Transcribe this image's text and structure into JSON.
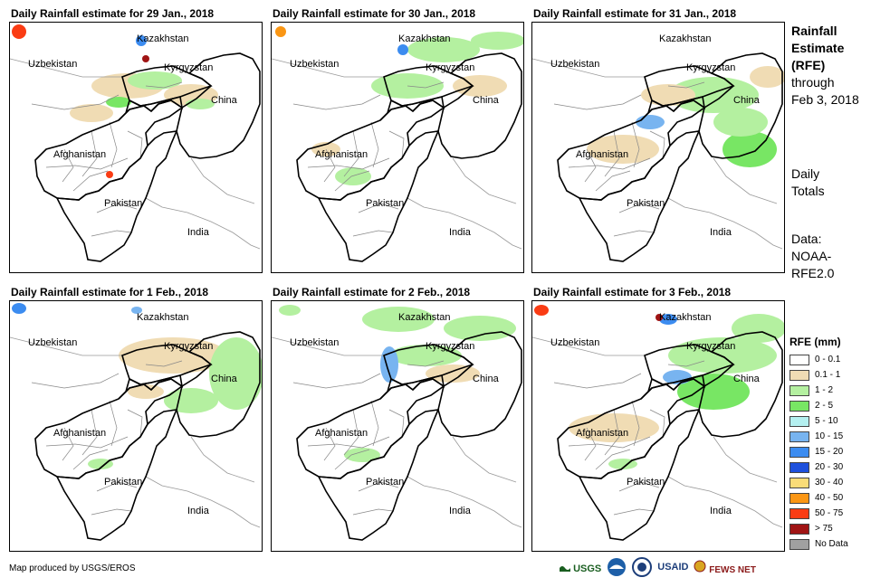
{
  "panels": [
    {
      "title": "Daily Rainfall estimate for 29 Jan., 2018"
    },
    {
      "title": "Daily Rainfall estimate for 30 Jan., 2018"
    },
    {
      "title": "Daily Rainfall estimate for 31 Jan., 2018"
    },
    {
      "title": "Daily Rainfall estimate for 1 Feb., 2018"
    },
    {
      "title": "Daily Rainfall estimate for 2 Feb., 2018"
    },
    {
      "title": "Daily Rainfall estimate for 3 Feb., 2018"
    }
  ],
  "map_labels": {
    "kazakhstan": "Kazakhstan",
    "uzbekistan": "Uzbekistan",
    "kyrgyzstan": "Kyrgyzstan",
    "china": "China",
    "afghanistan": "Afghanistan",
    "pakistan": "Pakistan",
    "india": "India"
  },
  "side": {
    "title_lines": [
      "Rainfall",
      "Estimate",
      "(RFE)"
    ],
    "through_lines": [
      "through",
      "Feb 3, 2018"
    ],
    "totals_lines": [
      "Daily",
      "Totals"
    ],
    "data_lines": [
      "Data:",
      "NOAA-",
      "RFE2.0"
    ]
  },
  "legend": {
    "title": "RFE (mm)",
    "items": [
      {
        "label": "0 - 0.1",
        "color": "#ffffff"
      },
      {
        "label": "0.1 - 1",
        "color": "#f0dcb4"
      },
      {
        "label": "1 - 2",
        "color": "#b4f0a0"
      },
      {
        "label": "2 - 5",
        "color": "#78e664"
      },
      {
        "label": "5 - 10",
        "color": "#b4f0f0"
      },
      {
        "label": "10 - 15",
        "color": "#78b4f0"
      },
      {
        "label": "15 - 20",
        "color": "#3c8cf0"
      },
      {
        "label": "20 - 30",
        "color": "#1e50dc"
      },
      {
        "label": "30 - 40",
        "color": "#fadc78"
      },
      {
        "label": "40 - 50",
        "color": "#fa9614"
      },
      {
        "label": "50 - 75",
        "color": "#fa3c14"
      },
      {
        "label": "> 75",
        "color": "#a01414"
      },
      {
        "label": "No Data",
        "color": "#a0a0a0"
      }
    ]
  },
  "footer": {
    "credit": "Map produced by USGS/EROS"
  },
  "logos": {
    "usgs": "USGS",
    "usaid": "USAID",
    "fewsnet": "FEWS NET"
  }
}
